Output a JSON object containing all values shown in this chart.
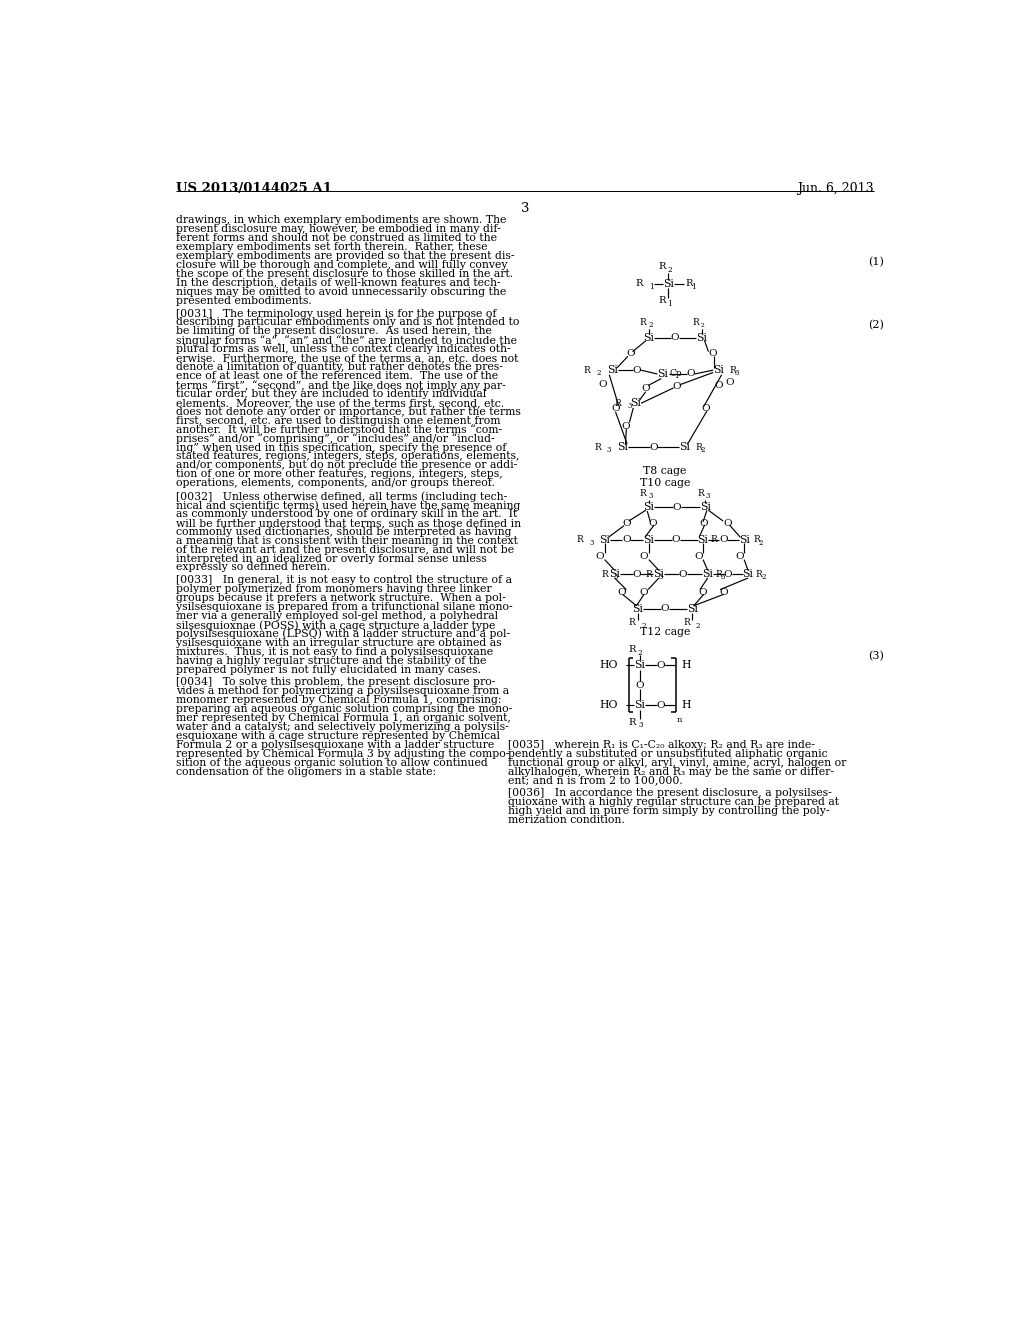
{
  "bg_color": "#ffffff",
  "header_left": "US 2013/0144025 A1",
  "header_right": "Jun. 6, 2013",
  "page_num": "3",
  "body_intro": "drawings, in which exemplary embodiments are shown. The\npresent disclosure may, however, be embodied in many dif-\nferent forms and should not be construed as limited to the\nexemplary embodiments set forth therein.  Rather, these\nexemplary embodiments are provided so that the present dis-\nclosure will be thorough and complete, and will fully convey\nthe scope of the present disclosure to those skilled in the art.\nIn the description, details of well-known features and tech-\nniques may be omitted to avoid unnecessarily obscuring the\npresented embodiments.",
  "p0031": "[0031]   The terminology used herein is for the purpose of\ndescribing particular embodiments only and is not intended to\nbe limiting of the present disclosure.  As used herein, the\nsingular forms “a”, “an” and “the” are intended to include the\nplural forms as well, unless the context clearly indicates oth-\nerwise.  Furthermore, the use of the terms a, an, etc. does not\ndenote a limitation of quantity, but rather denotes the pres-\nence of at least one of the referenced item.  The use of the\nterms “first”, “second”, and the like does not imply any par-\nticular order, but they are included to identify individual\nelements.  Moreover, the use of the terms first, second, etc.\ndoes not denote any order or importance, but rather the terms\nfirst, second, etc. are used to distinguish one element from\nanother.  It will be further understood that the terms “com-\nprises” and/or “comprising”, or “includes” and/or “includ-\ning” when used in this specification, specify the presence of\nstated features, regions, integers, steps, operations, elements,\nand/or components, but do not preclude the presence or addi-\ntion of one or more other features, regions, integers, steps,\noperations, elements, components, and/or groups thereof.",
  "p0032": "[0032]   Unless otherwise defined, all terms (including tech-\nnical and scientific terms) used herein have the same meaning\nas commonly understood by one of ordinary skill in the art.  It\nwill be further understood that terms, such as those defined in\ncommonly used dictionaries, should be interpreted as having\na meaning that is consistent with their meaning in the context\nof the relevant art and the present disclosure, and will not be\ninterpreted in an idealized or overly formal sense unless\nexpressly so defined herein.",
  "p0033": "[0033]   In general, it is not easy to control the structure of a\npolymer polymerized from monomers having three linker\ngroups because it prefers a network structure.  When a pol-\nysilsesquioxane is prepared from a trifunctional silane mono-\nmer via a generally employed sol-gel method, a polyhedral\nsilsesquioxnae (POSS) with a cage structure a ladder type\npolysilsesquioxane (LPSQ) with a ladder structure and a pol-\nysilsesquioxane with an irregular structure are obtained as\nmixtures.  Thus, it is not easy to find a polysilsesquioxane\nhaving a highly regular structure and the stability of the\nprepared polymer is not fully elucidated in many cases.",
  "p0034": "[0034]   To solve this problem, the present disclosure pro-\nvides a method for polymerizing a polysilsesquioxane from a\nmonomer represented by Chemical Formula 1, comprising:\npreparing an aqueous organic solution comprising the mono-\nmer represented by Chemical Formula 1, an organic solvent,\nwater and a catalyst; and selectively polymerizing a polysils-\nesquioxane with a cage structure represented by Chemical\nFormula 2 or a polysilsesquioxane with a ladder structure\nrepresented by Chemical Formula 3 by adjusting the compo-\nsition of the aqueous organic solution to allow continued\ncondensation of the oligomers in a stable state:",
  "p0035_right": "[0035]   wherein R₁ is C₁-C₂₀ alkoxy; R₂ and R₃ are inde-\npendently a substituted or unsubstituted aliphatic organic\nfunctional group or alkyl, aryl, vinyl, amine, acryl, halogen or\nalkylhalogen, wherein R₂ and R₃ may be the same or differ-\nent; and n is from 2 to 100,000.",
  "p0036_right": "[0036]   In accordance the present disclosure, a polysilses-\nquioxane with a highly regular structure can be prepared at\nhigh yield and in pure form simply by controlling the poly-\nmerization condition."
}
